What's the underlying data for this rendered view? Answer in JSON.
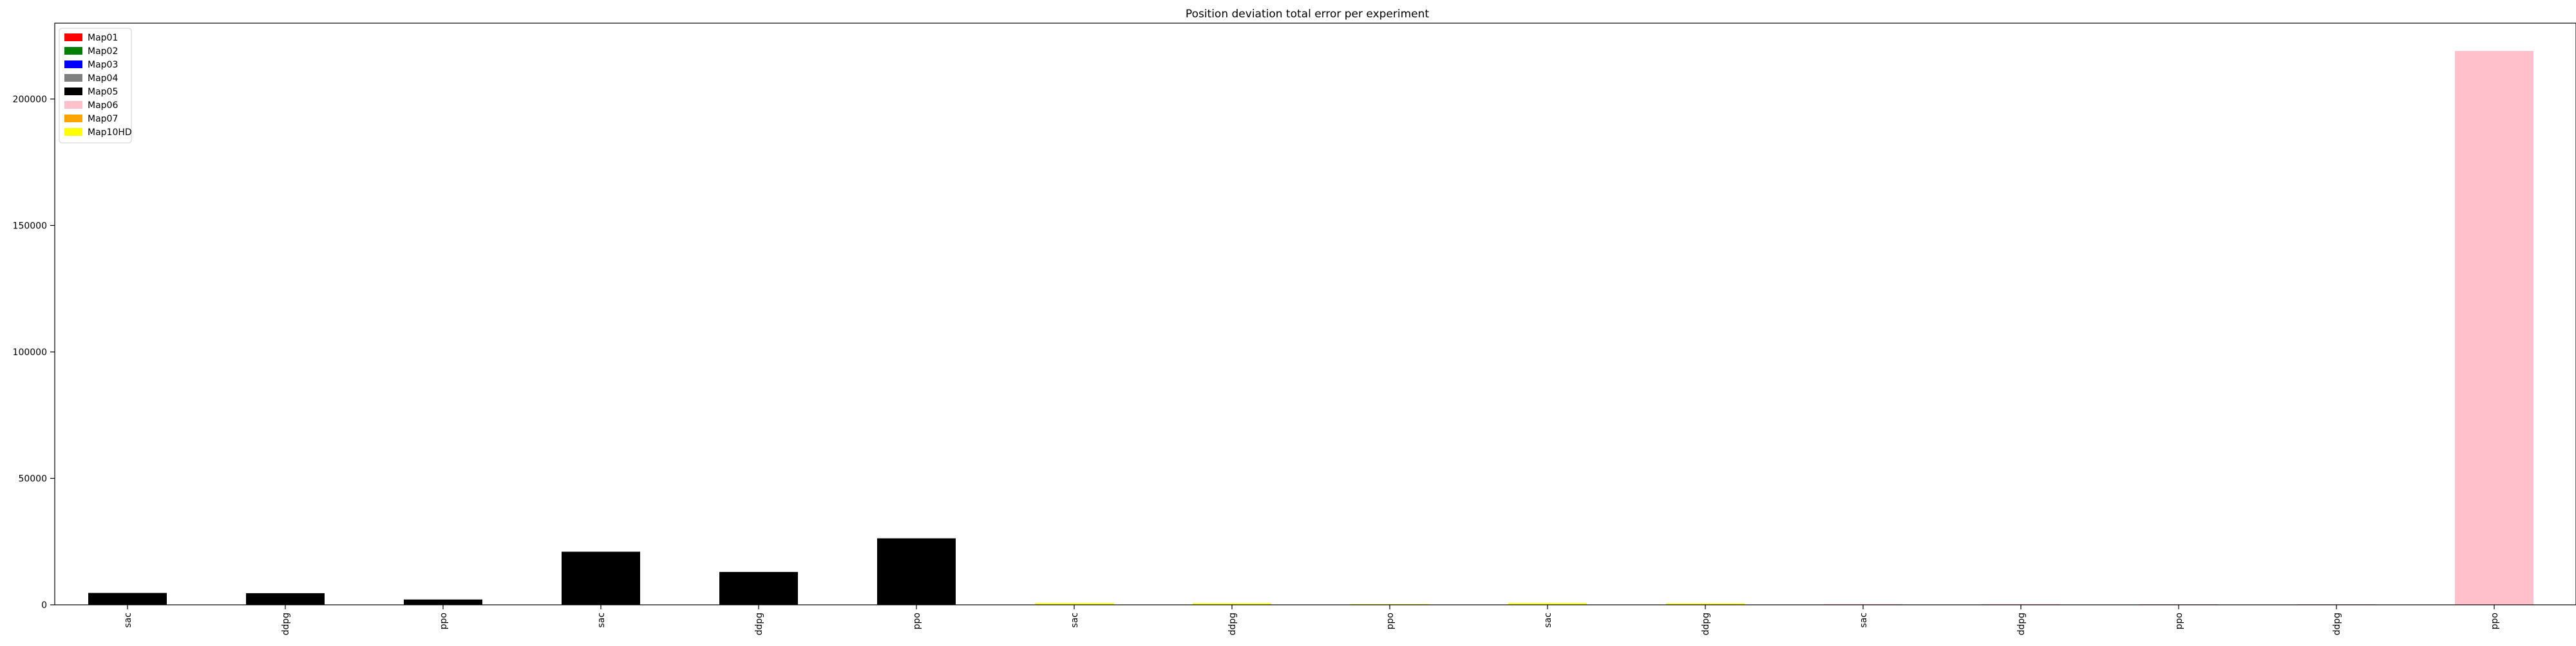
{
  "chart_data": {
    "type": "bar",
    "title": "Position deviation total error per experiment",
    "xlabel": "",
    "ylabel": "",
    "ylim": [
      0,
      230000
    ],
    "yticks": [
      0,
      50000,
      100000,
      150000,
      200000
    ],
    "grid": false,
    "legend_position": "top-left",
    "legend": [
      {
        "label": "Map01",
        "color": "#ff0000"
      },
      {
        "label": "Map02",
        "color": "#008000"
      },
      {
        "label": "Map03",
        "color": "#0000ff"
      },
      {
        "label": "Map04",
        "color": "#808080"
      },
      {
        "label": "Map05",
        "color": "#000000"
      },
      {
        "label": "Map06",
        "color": "#ffc0cb"
      },
      {
        "label": "Map07",
        "color": "#ffa500"
      },
      {
        "label": "Map10HD",
        "color": "#ffff00"
      }
    ],
    "categories": [
      "sac",
      "ddpg",
      "ppo",
      "sac",
      "ddpg",
      "ppo",
      "sac",
      "ddpg",
      "ppo",
      "sac",
      "ddpg",
      "sac",
      "ddpg",
      "ppo",
      "ddpg",
      "ppo"
    ],
    "values": [
      4700,
      4600,
      2100,
      21000,
      13000,
      26300,
      700,
      650,
      300,
      700,
      600,
      300,
      300,
      250,
      250,
      219000
    ],
    "bar_colors": [
      "#000000",
      "#000000",
      "#000000",
      "#000000",
      "#000000",
      "#000000",
      "#ffff00",
      "#ffff00",
      "#ffff00",
      "#ffff00",
      "#ffff00",
      "#ffc0cb",
      "#ffc0cb",
      "#ffc0cb",
      "#ffc0cb",
      "#ffc0cb"
    ]
  }
}
